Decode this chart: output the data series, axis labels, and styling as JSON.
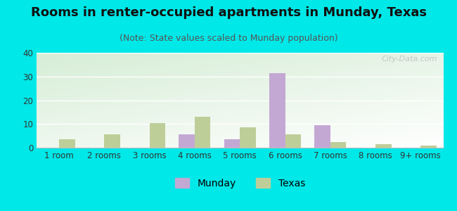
{
  "title": "Rooms in renter-occupied apartments in Munday, Texas",
  "subtitle": "(Note: State values scaled to Munday population)",
  "categories": [
    "1 room",
    "2 rooms",
    "3 rooms",
    "4 rooms",
    "5 rooms",
    "6 rooms",
    "7 rooms",
    "8 rooms",
    "9+ rooms"
  ],
  "munday_values": [
    0,
    0,
    0,
    5.5,
    3.5,
    31.5,
    9.5,
    0,
    0
  ],
  "texas_values": [
    3.5,
    5.5,
    10.5,
    13.0,
    8.5,
    5.5,
    2.5,
    1.5,
    1.0
  ],
  "munday_color": "#c4a8d4",
  "texas_color": "#bece99",
  "background_outer": "#00e8e8",
  "ylim": [
    0,
    40
  ],
  "yticks": [
    0,
    10,
    20,
    30,
    40
  ],
  "bar_width": 0.35,
  "title_fontsize": 13,
  "subtitle_fontsize": 9,
  "tick_fontsize": 8.5,
  "legend_fontsize": 10,
  "watermark_text": "City-Data.com"
}
